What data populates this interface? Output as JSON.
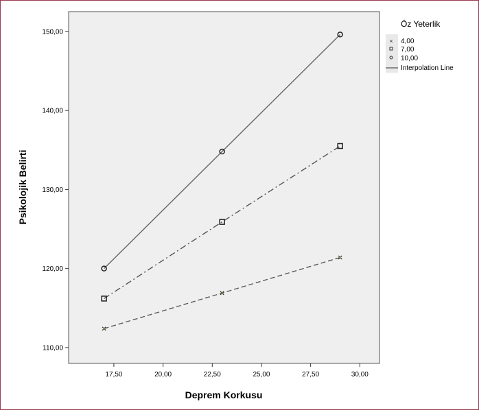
{
  "chart_data": {
    "type": "line",
    "xlabel": "Deprem Korkusu",
    "ylabel": "Psikolojik Belirti",
    "xlim": [
      15.2,
      31.0
    ],
    "ylim": [
      108.0,
      152.5
    ],
    "x_ticks": [
      "17,50",
      "20,00",
      "22,50",
      "25,00",
      "27,50",
      "30,00"
    ],
    "x_tick_values": [
      17.5,
      20.0,
      22.5,
      25.0,
      27.5,
      30.0
    ],
    "y_ticks": [
      "110,00",
      "120,00",
      "130,00",
      "140,00",
      "150,00"
    ],
    "y_tick_values": [
      110,
      120,
      130,
      140,
      150
    ],
    "grid": false,
    "plot_background": "#efefef",
    "legend": {
      "title": "Öz Yeterlik",
      "placement": "right",
      "entries": [
        "4,00",
        "7,00",
        "10,00",
        "Interpolation Line"
      ]
    },
    "series": [
      {
        "name": "4,00",
        "x": [
          17.0,
          23.0,
          29.0
        ],
        "y": [
          112.4,
          116.9,
          121.4
        ],
        "marker": "x",
        "line_style": "dashed",
        "color": "#555555"
      },
      {
        "name": "7,00",
        "x": [
          17.0,
          23.0,
          29.0
        ],
        "y": [
          116.2,
          125.9,
          135.5
        ],
        "marker": "square",
        "line_style": "dashdot",
        "color": "#555555"
      },
      {
        "name": "10,00",
        "x": [
          17.0,
          23.0,
          29.0
        ],
        "y": [
          120.0,
          134.8,
          149.6
        ],
        "marker": "circle",
        "line_style": "solid",
        "color": "#666666"
      }
    ]
  }
}
